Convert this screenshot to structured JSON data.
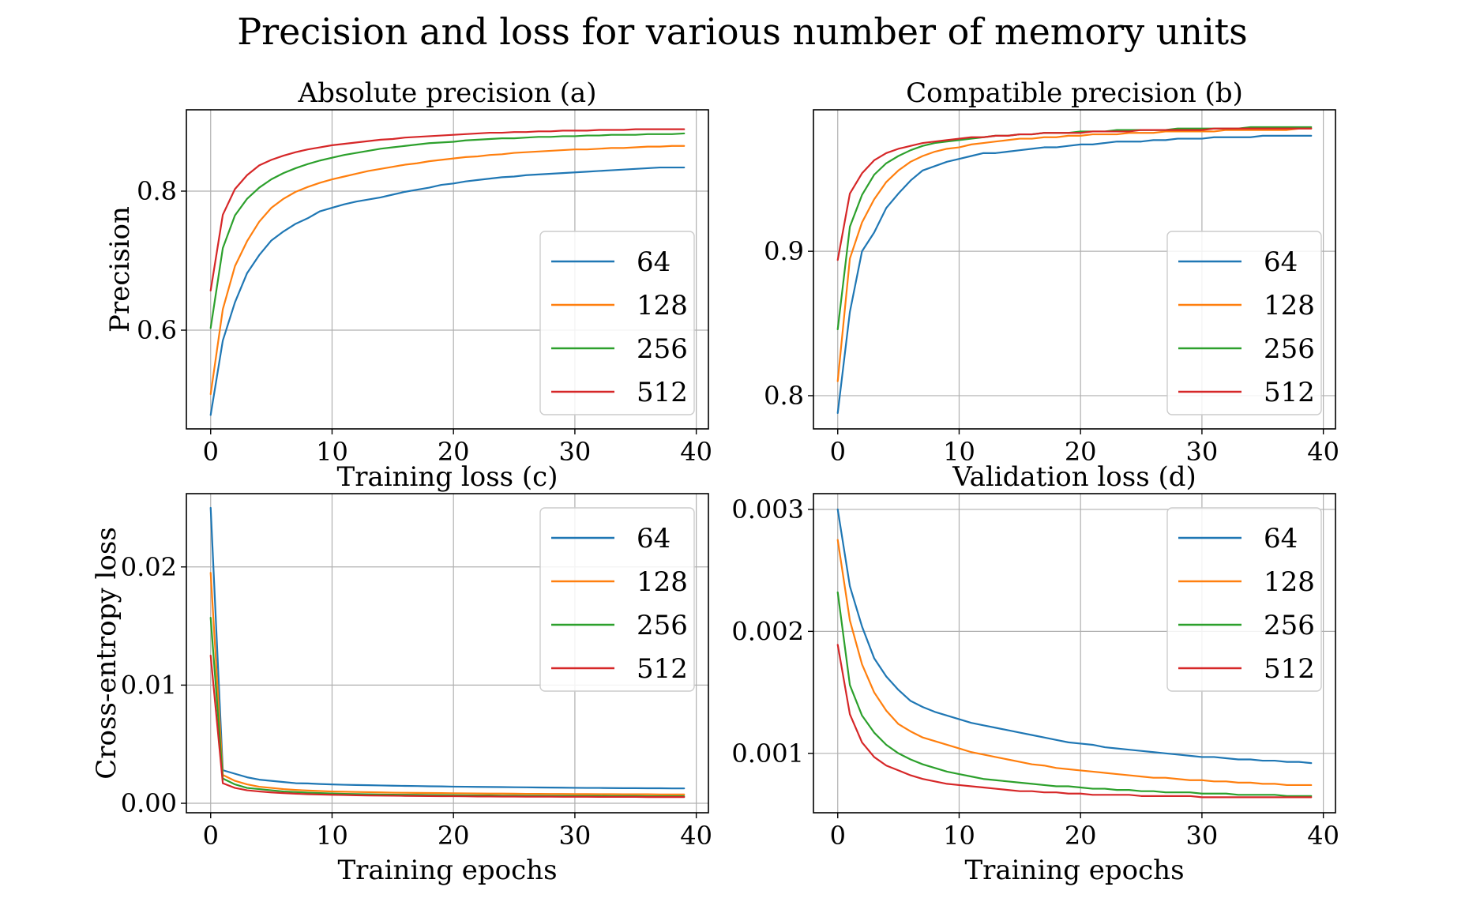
{
  "figure": {
    "title": "Precision and loss for various number of memory units"
  },
  "colors": {
    "64": "#1f77b4",
    "128": "#ff7f0e",
    "256": "#2ca02c",
    "512": "#d62728"
  },
  "chart_data": [
    {
      "id": "a",
      "type": "line",
      "title": "Absolute precision (a)",
      "xlabel": "",
      "ylabel": "Precision",
      "xlim": [
        -2,
        41
      ],
      "ylim": [
        0.458,
        0.917
      ],
      "xticks": [
        0,
        10,
        20,
        30,
        40
      ],
      "yticks": [
        0.6,
        0.8
      ],
      "ytick_labels": [
        "0.6",
        "0.8"
      ],
      "legend": "lower-right",
      "grid": true,
      "series": [
        {
          "name": "64",
          "values": [
            0.478,
            0.585,
            0.64,
            0.682,
            0.708,
            0.729,
            0.742,
            0.753,
            0.761,
            0.771,
            0.776,
            0.781,
            0.785,
            0.788,
            0.791,
            0.795,
            0.799,
            0.802,
            0.805,
            0.809,
            0.811,
            0.814,
            0.816,
            0.818,
            0.82,
            0.821,
            0.823,
            0.824,
            0.825,
            0.826,
            0.827,
            0.828,
            0.829,
            0.83,
            0.831,
            0.832,
            0.833,
            0.834,
            0.834,
            0.834
          ]
        },
        {
          "name": "128",
          "values": [
            0.508,
            0.63,
            0.692,
            0.728,
            0.756,
            0.776,
            0.789,
            0.799,
            0.806,
            0.812,
            0.817,
            0.821,
            0.825,
            0.829,
            0.832,
            0.835,
            0.838,
            0.84,
            0.843,
            0.845,
            0.847,
            0.849,
            0.85,
            0.852,
            0.853,
            0.855,
            0.856,
            0.857,
            0.858,
            0.859,
            0.86,
            0.86,
            0.861,
            0.862,
            0.862,
            0.863,
            0.864,
            0.864,
            0.865,
            0.865
          ]
        },
        {
          "name": "256",
          "values": [
            0.603,
            0.718,
            0.765,
            0.789,
            0.805,
            0.817,
            0.826,
            0.833,
            0.839,
            0.844,
            0.848,
            0.852,
            0.855,
            0.858,
            0.861,
            0.863,
            0.865,
            0.867,
            0.869,
            0.87,
            0.871,
            0.873,
            0.874,
            0.875,
            0.876,
            0.876,
            0.877,
            0.878,
            0.878,
            0.879,
            0.879,
            0.88,
            0.88,
            0.881,
            0.881,
            0.881,
            0.882,
            0.882,
            0.882,
            0.883
          ]
        },
        {
          "name": "512",
          "values": [
            0.657,
            0.766,
            0.803,
            0.823,
            0.837,
            0.845,
            0.851,
            0.856,
            0.86,
            0.863,
            0.866,
            0.868,
            0.87,
            0.872,
            0.874,
            0.875,
            0.877,
            0.878,
            0.879,
            0.88,
            0.881,
            0.882,
            0.883,
            0.884,
            0.884,
            0.885,
            0.885,
            0.886,
            0.886,
            0.887,
            0.887,
            0.887,
            0.888,
            0.888,
            0.888,
            0.889,
            0.889,
            0.889,
            0.889,
            0.889
          ]
        }
      ]
    },
    {
      "id": "b",
      "type": "line",
      "title": "Compatible precision (b)",
      "xlabel": "",
      "ylabel": "",
      "xlim": [
        -2,
        41
      ],
      "ylim": [
        0.777,
        0.998
      ],
      "xticks": [
        0,
        10,
        20,
        30,
        40
      ],
      "yticks": [
        0.8,
        0.9
      ],
      "ytick_labels": [
        "0.8",
        "0.9"
      ],
      "legend": "lower-right",
      "grid": true,
      "series": [
        {
          "name": "64",
          "values": [
            0.788,
            0.858,
            0.9,
            0.913,
            0.93,
            0.94,
            0.949,
            0.956,
            0.959,
            0.962,
            0.964,
            0.966,
            0.968,
            0.968,
            0.969,
            0.97,
            0.971,
            0.972,
            0.972,
            0.973,
            0.974,
            0.974,
            0.975,
            0.976,
            0.976,
            0.976,
            0.977,
            0.977,
            0.978,
            0.978,
            0.978,
            0.979,
            0.979,
            0.979,
            0.979,
            0.98,
            0.98,
            0.98,
            0.98,
            0.98
          ]
        },
        {
          "name": "128",
          "values": [
            0.81,
            0.895,
            0.92,
            0.936,
            0.948,
            0.956,
            0.962,
            0.966,
            0.969,
            0.971,
            0.972,
            0.974,
            0.975,
            0.976,
            0.977,
            0.978,
            0.978,
            0.979,
            0.979,
            0.98,
            0.98,
            0.981,
            0.981,
            0.981,
            0.982,
            0.982,
            0.982,
            0.983,
            0.983,
            0.983,
            0.983,
            0.983,
            0.984,
            0.984,
            0.984,
            0.984,
            0.984,
            0.984,
            0.985,
            0.985
          ]
        },
        {
          "name": "256",
          "values": [
            0.846,
            0.917,
            0.939,
            0.953,
            0.961,
            0.966,
            0.97,
            0.973,
            0.975,
            0.976,
            0.977,
            0.978,
            0.979,
            0.98,
            0.98,
            0.981,
            0.981,
            0.982,
            0.982,
            0.982,
            0.983,
            0.983,
            0.983,
            0.984,
            0.984,
            0.984,
            0.984,
            0.984,
            0.985,
            0.985,
            0.985,
            0.985,
            0.985,
            0.985,
            0.986,
            0.986,
            0.986,
            0.986,
            0.986,
            0.986
          ]
        },
        {
          "name": "512",
          "values": [
            0.894,
            0.94,
            0.954,
            0.963,
            0.968,
            0.971,
            0.973,
            0.975,
            0.976,
            0.977,
            0.978,
            0.979,
            0.979,
            0.98,
            0.98,
            0.981,
            0.981,
            0.982,
            0.982,
            0.982,
            0.982,
            0.983,
            0.983,
            0.983,
            0.983,
            0.984,
            0.984,
            0.984,
            0.984,
            0.984,
            0.984,
            0.985,
            0.985,
            0.985,
            0.985,
            0.985,
            0.985,
            0.985,
            0.985,
            0.985
          ]
        }
      ]
    },
    {
      "id": "c",
      "type": "line",
      "title": "Training loss (c)",
      "xlabel": "Training epochs",
      "ylabel": "Cross-entropy loss",
      "xlim": [
        -2,
        41
      ],
      "ylim": [
        -0.0008,
        0.0262
      ],
      "xticks": [
        0,
        10,
        20,
        30,
        40
      ],
      "yticks": [
        0.0,
        0.01,
        0.02
      ],
      "ytick_labels": [
        "0.00",
        "0.01",
        "0.02"
      ],
      "legend": "upper-right",
      "grid": true,
      "series": [
        {
          "name": "64",
          "values": [
            0.025,
            0.0028,
            0.0025,
            0.0022,
            0.002,
            0.0019,
            0.0018,
            0.0017,
            0.00168,
            0.00163,
            0.0016,
            0.00157,
            0.00155,
            0.00153,
            0.00151,
            0.00149,
            0.00147,
            0.00146,
            0.00144,
            0.00143,
            0.00141,
            0.0014,
            0.00139,
            0.00138,
            0.00137,
            0.00136,
            0.00135,
            0.00134,
            0.00133,
            0.00132,
            0.00131,
            0.0013,
            0.0013,
            0.00129,
            0.00128,
            0.00128,
            0.00127,
            0.00127,
            0.00126,
            0.00126
          ]
        },
        {
          "name": "128",
          "values": [
            0.0195,
            0.0024,
            0.0019,
            0.0016,
            0.0014,
            0.0013,
            0.0012,
            0.00113,
            0.00108,
            0.00104,
            0.001,
            0.00098,
            0.00096,
            0.00094,
            0.00092,
            0.0009,
            0.00089,
            0.00088,
            0.00087,
            0.00086,
            0.00085,
            0.00084,
            0.00083,
            0.00082,
            0.00082,
            0.00081,
            0.0008,
            0.0008,
            0.00079,
            0.00079,
            0.00078,
            0.00078,
            0.00077,
            0.00077,
            0.00076,
            0.00076,
            0.00076,
            0.00075,
            0.00075,
            0.00075
          ]
        },
        {
          "name": "256",
          "values": [
            0.0157,
            0.0021,
            0.0016,
            0.0013,
            0.0012,
            0.0011,
            0.001,
            0.00095,
            0.0009,
            0.00086,
            0.00083,
            0.0008,
            0.00078,
            0.00076,
            0.00074,
            0.00073,
            0.00072,
            0.00071,
            0.0007,
            0.00069,
            0.00068,
            0.00067,
            0.00066,
            0.00066,
            0.00065,
            0.00065,
            0.00064,
            0.00064,
            0.00063,
            0.00063,
            0.00062,
            0.00062,
            0.00062,
            0.00061,
            0.00061,
            0.00061,
            0.0006,
            0.0006,
            0.0006,
            0.0006
          ]
        },
        {
          "name": "512",
          "values": [
            0.0125,
            0.0017,
            0.0013,
            0.0011,
            0.001,
            0.00092,
            0.00086,
            0.00081,
            0.00077,
            0.00074,
            0.00072,
            0.0007,
            0.00068,
            0.00066,
            0.00065,
            0.00064,
            0.00063,
            0.00062,
            0.00061,
            0.0006,
            0.0006,
            0.00059,
            0.00058,
            0.00058,
            0.00057,
            0.00057,
            0.00056,
            0.00056,
            0.00056,
            0.00055,
            0.00055,
            0.00055,
            0.00054,
            0.00054,
            0.00054,
            0.00054,
            0.00053,
            0.00053,
            0.00053,
            0.00053
          ]
        }
      ]
    },
    {
      "id": "d",
      "type": "line",
      "title": "Validation loss (d)",
      "xlabel": "Training epochs",
      "ylabel": "",
      "xlim": [
        -2,
        41
      ],
      "ylim": [
        0.000513,
        0.003129
      ],
      "xticks": [
        0,
        10,
        20,
        30,
        40
      ],
      "yticks": [
        0.001,
        0.002,
        0.003
      ],
      "ytick_labels": [
        "0.001",
        "0.002",
        "0.003"
      ],
      "legend": "upper-right",
      "grid": true,
      "series": [
        {
          "name": "64",
          "values": [
            0.003,
            0.00237,
            0.00204,
            0.00178,
            0.00163,
            0.00152,
            0.00143,
            0.00138,
            0.00134,
            0.00131,
            0.00128,
            0.00125,
            0.00123,
            0.00121,
            0.00119,
            0.00117,
            0.00115,
            0.00113,
            0.00111,
            0.00109,
            0.00108,
            0.00107,
            0.00105,
            0.00104,
            0.00103,
            0.00102,
            0.00101,
            0.001,
            0.00099,
            0.00098,
            0.00097,
            0.00097,
            0.00096,
            0.00095,
            0.00095,
            0.00094,
            0.00094,
            0.00093,
            0.00093,
            0.00092
          ]
        },
        {
          "name": "128",
          "values": [
            0.00275,
            0.00209,
            0.00173,
            0.0015,
            0.00135,
            0.00124,
            0.00118,
            0.00113,
            0.0011,
            0.00107,
            0.00104,
            0.00101,
            0.00099,
            0.00097,
            0.00095,
            0.00093,
            0.00091,
            0.0009,
            0.00088,
            0.00087,
            0.00086,
            0.00085,
            0.00084,
            0.00083,
            0.00082,
            0.00081,
            0.0008,
            0.0008,
            0.00079,
            0.00078,
            0.00078,
            0.00077,
            0.00077,
            0.00076,
            0.00076,
            0.00075,
            0.00075,
            0.00074,
            0.00074,
            0.00074
          ]
        },
        {
          "name": "256",
          "values": [
            0.00232,
            0.00156,
            0.00131,
            0.00117,
            0.00107,
            0.001,
            0.00095,
            0.00091,
            0.00088,
            0.00085,
            0.00083,
            0.00081,
            0.00079,
            0.00078,
            0.00077,
            0.00076,
            0.00075,
            0.00074,
            0.00073,
            0.00073,
            0.00072,
            0.00071,
            0.00071,
            0.0007,
            0.0007,
            0.00069,
            0.00069,
            0.00068,
            0.00068,
            0.00068,
            0.00067,
            0.00067,
            0.00067,
            0.00066,
            0.00066,
            0.00066,
            0.00066,
            0.00065,
            0.00065,
            0.00065
          ]
        },
        {
          "name": "512",
          "values": [
            0.00189,
            0.00132,
            0.00109,
            0.00097,
            0.0009,
            0.00086,
            0.00082,
            0.00079,
            0.00077,
            0.00075,
            0.00074,
            0.00073,
            0.00072,
            0.00071,
            0.0007,
            0.00069,
            0.00069,
            0.00068,
            0.00068,
            0.00067,
            0.00067,
            0.00066,
            0.00066,
            0.00066,
            0.00066,
            0.00065,
            0.00065,
            0.00065,
            0.00065,
            0.00065,
            0.00064,
            0.00064,
            0.00064,
            0.00064,
            0.00064,
            0.00064,
            0.00064,
            0.00064,
            0.00064,
            0.00064
          ]
        }
      ]
    }
  ]
}
